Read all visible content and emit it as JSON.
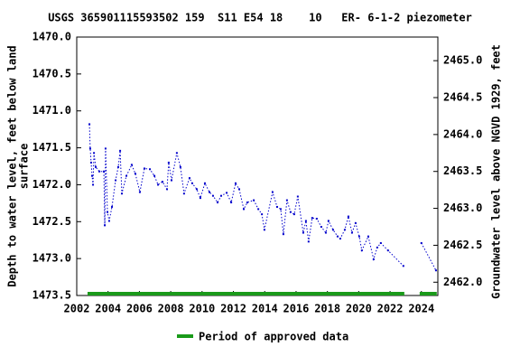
{
  "chart_data": {
    "type": "line",
    "title": "USGS 365901115593502 159  S11 E54 18    10   ER- 6-1-2 piezometer",
    "ylabel": [
      "Depth to water level, feet below land",
      "surface"
    ],
    "y2label": "Groundwater level above NGVD 1929, feet",
    "xlim": [
      2002,
      2025.05
    ],
    "xticks": [
      2002,
      2004,
      2006,
      2008,
      2010,
      2012,
      2014,
      2016,
      2018,
      2020,
      2022,
      2024
    ],
    "ylim": [
      1470.0,
      1473.5
    ],
    "yticks": [
      {
        "value": 1470.0,
        "label": "1470.0"
      },
      {
        "value": 1470.5,
        "label": "1470.5"
      },
      {
        "value": 1471.0,
        "label": "1471.0"
      },
      {
        "value": 1471.5,
        "label": "1471.5"
      },
      {
        "value": 1472.0,
        "label": "1472.0"
      },
      {
        "value": 1472.5,
        "label": "1472.5"
      },
      {
        "value": 1473.0,
        "label": "1473.0"
      },
      {
        "value": 1473.5,
        "label": "1473.5"
      }
    ],
    "y2lim": [
      2465.32,
      2461.82
    ],
    "y2ticks": [
      {
        "value": 2465.0,
        "label": "2465.0"
      },
      {
        "value": 2464.5,
        "label": "2464.5"
      },
      {
        "value": 2464.0,
        "label": "2464.0"
      },
      {
        "value": 2463.5,
        "label": "2463.5"
      },
      {
        "value": 2463.0,
        "label": "2463.0"
      },
      {
        "value": 2462.5,
        "label": "2462.5"
      },
      {
        "value": 2462.0,
        "label": "2462.0"
      }
    ],
    "series": [
      {
        "color": "#0000cc",
        "x": [
          2002.81,
          2002.86,
          2002.92,
          2002.98,
          2003.04,
          2003.1,
          2003.21,
          2003.44,
          2003.73,
          2003.79,
          2003.84,
          2003.96,
          2004.07,
          2004.25,
          2004.48,
          2004.65,
          2004.77,
          2004.88,
          2005.17,
          2005.51,
          2005.74,
          2006.03,
          2006.32,
          2006.67,
          2006.96,
          2007.19,
          2007.47,
          2007.76,
          2007.87,
          2008.05,
          2008.39,
          2008.62,
          2008.85,
          2009.2,
          2009.37,
          2009.66,
          2009.89,
          2010.18,
          2010.47,
          2010.7,
          2010.99,
          2011.22,
          2011.57,
          2011.86,
          2012.14,
          2012.37,
          2012.66,
          2012.89,
          2013.3,
          2013.59,
          2013.82,
          2013.98,
          2014.5,
          2014.79,
          2015.02,
          2015.19,
          2015.42,
          2015.65,
          2015.88,
          2016.11,
          2016.46,
          2016.63,
          2016.8,
          2017.03,
          2017.32,
          2017.61,
          2017.9,
          2018.07,
          2018.36,
          2018.65,
          2018.82,
          2019.11,
          2019.34,
          2019.57,
          2019.8,
          2020.03,
          2020.2,
          2020.61,
          2020.95,
          2021.18,
          2021.41,
          2021.87,
          2022.85,
          null,
          2024.0,
          2024.93
        ],
        "values": [
          1471.18,
          1471.51,
          1471.7,
          1471.88,
          1472.0,
          1471.57,
          1471.76,
          1471.82,
          1471.82,
          1472.55,
          1471.51,
          1472.37,
          1472.49,
          1472.3,
          1471.94,
          1471.76,
          1471.54,
          1472.12,
          1471.88,
          1471.73,
          1471.85,
          1472.1,
          1471.78,
          1471.79,
          1471.88,
          1472.0,
          1471.96,
          1472.06,
          1471.7,
          1471.94,
          1471.57,
          1471.76,
          1472.12,
          1471.91,
          1471.98,
          1472.06,
          1472.18,
          1471.98,
          1472.1,
          1472.15,
          1472.24,
          1472.15,
          1472.11,
          1472.24,
          1471.98,
          1472.06,
          1472.33,
          1472.24,
          1472.21,
          1472.33,
          1472.4,
          1472.61,
          1472.1,
          1472.3,
          1472.33,
          1472.67,
          1472.21,
          1472.37,
          1472.4,
          1472.16,
          1472.65,
          1472.49,
          1472.77,
          1472.45,
          1472.46,
          1472.57,
          1472.65,
          1472.49,
          1472.61,
          1472.7,
          1472.73,
          1472.61,
          1472.43,
          1472.65,
          1472.52,
          1472.7,
          1472.89,
          1472.7,
          1473.01,
          1472.85,
          1472.79,
          1472.89,
          1473.1,
          null,
          1472.79,
          1473.16
        ]
      }
    ],
    "approved": {
      "name": "Period of approved data",
      "color": "#1a9a1a",
      "periods": [
        [
          2002.69,
          2022.91
        ],
        [
          2023.89,
          2024.98
        ]
      ]
    }
  }
}
